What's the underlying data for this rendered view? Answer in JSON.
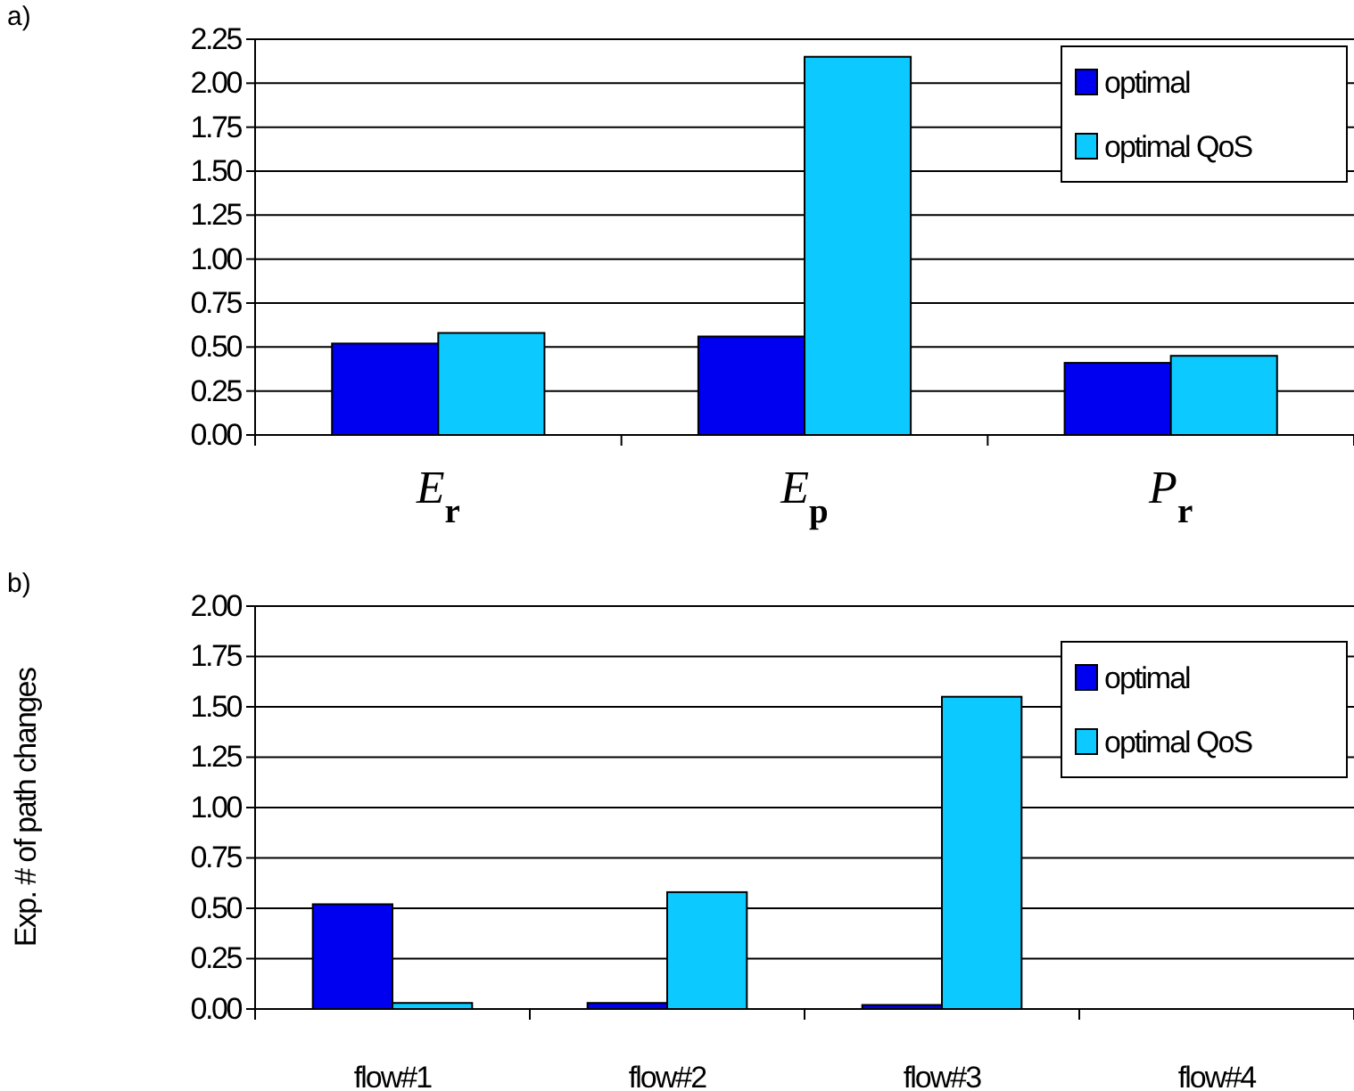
{
  "chart_data": [
    {
      "type": "bar",
      "title": "a)",
      "categories": [
        "E$_{r}$",
        "E$_{p}$",
        "P$_{r}$"
      ],
      "series": [
        {
          "name": "optimal",
          "color": "#0000f0",
          "values": [
            0.52,
            0.56,
            0.41
          ]
        },
        {
          "name": "optimal QoS",
          "color": "#0ccaff",
          "values": [
            0.58,
            2.15,
            0.45
          ]
        }
      ],
      "ylim": [
        0,
        2.25
      ],
      "yticks": [
        {
          "value": 0,
          "label": "0.00"
        },
        {
          "value": 0.25,
          "label": "0.25"
        },
        {
          "value": 0.5,
          "label": "0.50"
        },
        {
          "value": 0.75,
          "label": "0.75"
        },
        {
          "value": 1,
          "label": "1.00"
        },
        {
          "value": 1.25,
          "label": "1.25"
        },
        {
          "value": 1.5,
          "label": "1.50"
        },
        {
          "value": 1.75,
          "label": "1.75"
        },
        {
          "value": 2,
          "label": "2.00"
        },
        {
          "value": 2.25,
          "label": "2.25"
        }
      ],
      "grid": "y",
      "legend": "top right"
    },
    {
      "type": "bar",
      "title": "b)",
      "ylabel": "Exp. # of path changes",
      "categories": [
        "flow#1",
        "flow#2",
        "flow#3",
        "flow#4"
      ],
      "series": [
        {
          "name": "optimal",
          "color": "#0000f0",
          "values": [
            0.52,
            0.03,
            0.02,
            0
          ]
        },
        {
          "name": "optimal QoS",
          "color": "#0ccaff",
          "values": [
            0.03,
            0.58,
            1.55,
            0
          ]
        }
      ],
      "ylim": [
        0,
        2
      ],
      "yticks": [
        {
          "value": 0,
          "label": "0.00"
        },
        {
          "value": 0.25,
          "label": "0.25"
        },
        {
          "value": 0.5,
          "label": "0.50"
        },
        {
          "value": 0.75,
          "label": "0.75"
        },
        {
          "value": 1,
          "label": "1.00"
        },
        {
          "value": 1.25,
          "label": "1.25"
        },
        {
          "value": 1.5,
          "label": "1.50"
        },
        {
          "value": 1.75,
          "label": "1.75"
        },
        {
          "value": 2,
          "label": "2.00"
        }
      ],
      "grid": "y",
      "legend": "top right"
    }
  ]
}
